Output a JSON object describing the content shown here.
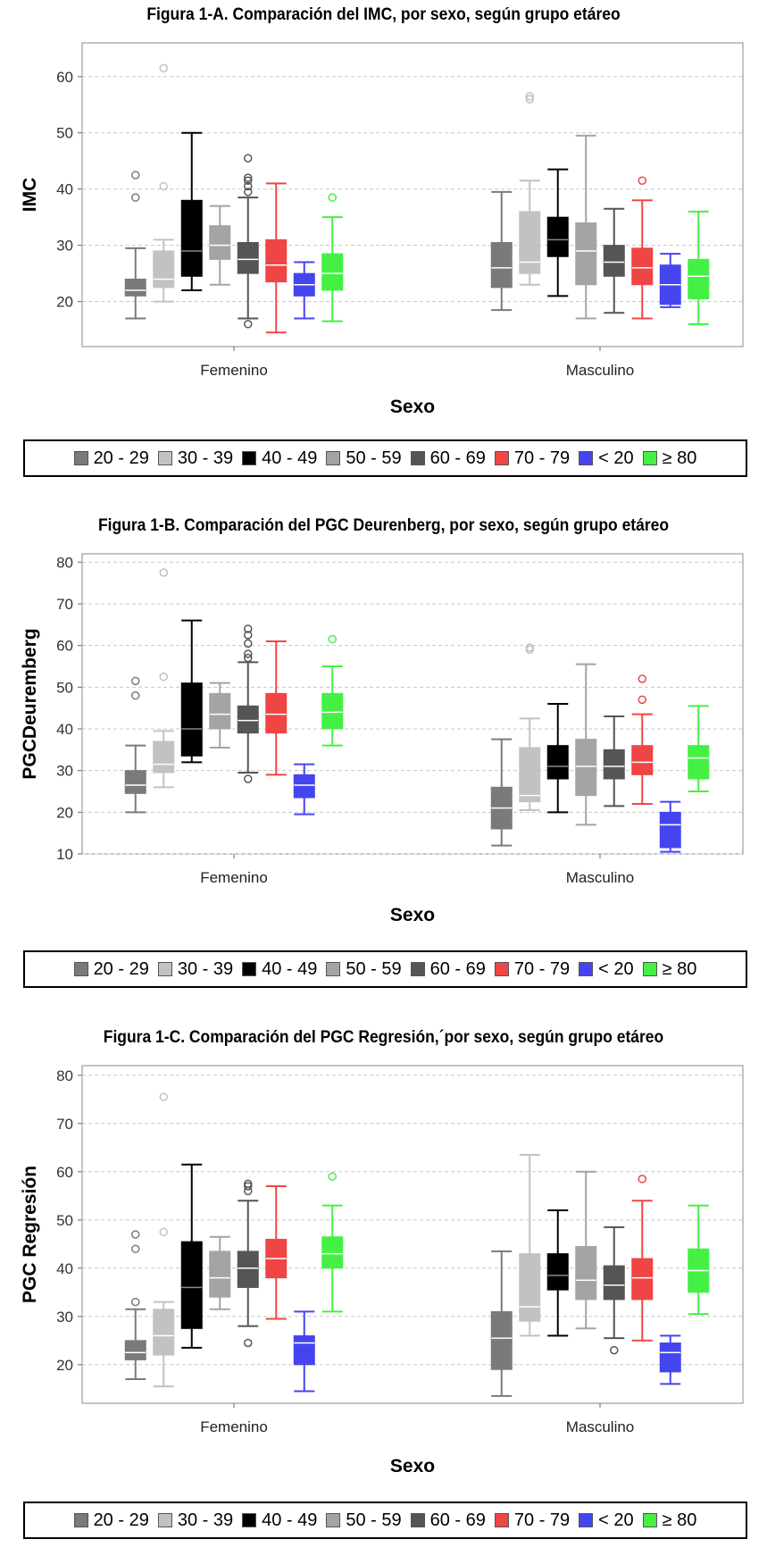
{
  "groups_order": [
    "20 - 29",
    "30 - 39",
    "40 - 49",
    "50 - 59",
    "60 - 69",
    "70 - 79",
    "< 20",
    "≥ 80"
  ],
  "colors": {
    "20 - 29": "#7a7a7a",
    "30 - 39": "#c2c2c2",
    "40 - 49": "#000000",
    "50 - 59": "#a4a4a4",
    "60 - 69": "#555555",
    "70 - 79": "#f04545",
    "< 20": "#4545f0",
    "≥ 80": "#45f045"
  },
  "legend": [
    {
      "label": "20 - 29",
      "color": "#7a7a7a"
    },
    {
      "label": "30 - 39",
      "color": "#c2c2c2"
    },
    {
      "label": "40 - 49",
      "color": "#000000"
    },
    {
      "label": "50 - 59",
      "color": "#a4a4a4"
    },
    {
      "label": "60 - 69",
      "color": "#555555"
    },
    {
      "label": "70 - 79",
      "color": "#f04545"
    },
    {
      "label": "< 20",
      "color": "#4545f0"
    },
    {
      "label": "≥ 80",
      "color": "#45f045"
    }
  ],
  "chart_data": [
    {
      "type": "boxplot",
      "title": "Figura 1-A. Comparación del IMC, por sexo, según grupo etáreo",
      "xlabel": "Sexo",
      "ylabel": "IMC",
      "ylim": [
        12,
        66
      ],
      "yticks": [
        20,
        30,
        40,
        50,
        60
      ],
      "grid": true,
      "legend_position": "bottom",
      "categories": [
        "Femenino",
        "Masculino"
      ],
      "series": [
        {
          "name": "20 - 29",
          "boxes": [
            {
              "min": 17,
              "q1": 21,
              "median": 22,
              "q3": 24,
              "max": 29.5,
              "outliers": [
                38.5,
                42.5
              ]
            },
            {
              "min": 18.5,
              "q1": 22.5,
              "median": 26,
              "q3": 30.5,
              "max": 39.5,
              "outliers": []
            }
          ]
        },
        {
          "name": "30 - 39",
          "boxes": [
            {
              "min": 20,
              "q1": 22.5,
              "median": 24,
              "q3": 29,
              "max": 31,
              "outliers": [
                40.5,
                61.5
              ]
            },
            {
              "min": 23,
              "q1": 25,
              "median": 27,
              "q3": 36,
              "max": 41.5,
              "outliers": [
                56,
                56.5
              ]
            }
          ]
        },
        {
          "name": "40 - 49",
          "boxes": [
            {
              "min": 22,
              "q1": 24.5,
              "median": 29,
              "q3": 38,
              "max": 50,
              "outliers": []
            },
            {
              "min": 21,
              "q1": 28,
              "median": 31,
              "q3": 35,
              "max": 43.5,
              "outliers": []
            }
          ]
        },
        {
          "name": "50 - 59",
          "boxes": [
            {
              "min": 23,
              "q1": 27.5,
              "median": 30,
              "q3": 33.5,
              "max": 37,
              "outliers": []
            },
            {
              "min": 17,
              "q1": 23,
              "median": 29,
              "q3": 34,
              "max": 49.5,
              "outliers": []
            }
          ]
        },
        {
          "name": "60 - 69",
          "boxes": [
            {
              "min": 17,
              "q1": 25,
              "median": 27.5,
              "q3": 30.5,
              "max": 38.5,
              "outliers": [
                16,
                39.5,
                40.5,
                41.5,
                42,
                45.5
              ]
            },
            {
              "min": 18,
              "q1": 24.5,
              "median": 27,
              "q3": 30,
              "max": 36.5,
              "outliers": []
            }
          ]
        },
        {
          "name": "70 - 79",
          "boxes": [
            {
              "min": 14.5,
              "q1": 23.5,
              "median": 26.5,
              "q3": 31,
              "max": 41,
              "outliers": []
            },
            {
              "min": 17,
              "q1": 23,
              "median": 26,
              "q3": 29.5,
              "max": 38,
              "outliers": [
                41.5
              ]
            }
          ]
        },
        {
          "name": "< 20",
          "boxes": [
            {
              "min": 17,
              "q1": 21,
              "median": 23,
              "q3": 25,
              "max": 27,
              "outliers": []
            },
            {
              "min": 19,
              "q1": 19.5,
              "median": 23,
              "q3": 26.5,
              "max": 28.5,
              "outliers": []
            }
          ]
        },
        {
          "name": "≥ 80",
          "boxes": [
            {
              "min": 16.5,
              "q1": 22,
              "median": 25,
              "q3": 28.5,
              "max": 35,
              "outliers": [
                38.5
              ]
            },
            {
              "min": 16,
              "q1": 20.5,
              "median": 24.5,
              "q3": 27.5,
              "max": 36,
              "outliers": []
            }
          ]
        }
      ]
    },
    {
      "type": "boxplot",
      "title": "Figura 1-B. Comparación del PGC Deurenberg, por sexo, según grupo etáreo",
      "xlabel": "Sexo",
      "ylabel": "PGCDeuremberg",
      "ylim": [
        10,
        82
      ],
      "yticks": [
        10,
        20,
        30,
        40,
        50,
        60,
        70,
        80
      ],
      "grid": true,
      "legend_position": "bottom",
      "categories": [
        "Femenino",
        "Masculino"
      ],
      "series": [
        {
          "name": "20 - 29",
          "boxes": [
            {
              "min": 20,
              "q1": 24.5,
              "median": 26.5,
              "q3": 30,
              "max": 36,
              "outliers": [
                48,
                51.5
              ]
            },
            {
              "min": 12,
              "q1": 16,
              "median": 21,
              "q3": 26,
              "max": 37.5,
              "outliers": []
            }
          ]
        },
        {
          "name": "30 - 39",
          "boxes": [
            {
              "min": 26,
              "q1": 29.5,
              "median": 31.5,
              "q3": 37,
              "max": 39.5,
              "outliers": [
                52.5,
                77.5
              ]
            },
            {
              "min": 20.5,
              "q1": 22.5,
              "median": 24,
              "q3": 35.5,
              "max": 42.5,
              "outliers": [
                59,
                59.5
              ]
            }
          ]
        },
        {
          "name": "40 - 49",
          "boxes": [
            {
              "min": 32,
              "q1": 33.5,
              "median": 40,
              "q3": 51,
              "max": 66,
              "outliers": []
            },
            {
              "min": 20,
              "q1": 28,
              "median": 31,
              "q3": 36,
              "max": 46,
              "outliers": []
            }
          ]
        },
        {
          "name": "50 - 59",
          "boxes": [
            {
              "min": 35.5,
              "q1": 40,
              "median": 43.5,
              "q3": 48.5,
              "max": 51,
              "outliers": []
            },
            {
              "min": 17,
              "q1": 24,
              "median": 31,
              "q3": 37.5,
              "max": 55.5,
              "outliers": []
            }
          ]
        },
        {
          "name": "60 - 69",
          "boxes": [
            {
              "min": 29.5,
              "q1": 39,
              "median": 42,
              "q3": 45.5,
              "max": 56,
              "outliers": [
                28,
                57,
                58,
                60.5,
                62.5,
                64
              ]
            },
            {
              "min": 21.5,
              "q1": 28,
              "median": 31,
              "q3": 35,
              "max": 43,
              "outliers": []
            }
          ]
        },
        {
          "name": "70 - 79",
          "boxes": [
            {
              "min": 29,
              "q1": 39,
              "median": 43.5,
              "q3": 48.5,
              "max": 61,
              "outliers": []
            },
            {
              "min": 22,
              "q1": 29,
              "median": 32,
              "q3": 36,
              "max": 43.5,
              "outliers": [
                47,
                52
              ]
            }
          ]
        },
        {
          "name": "< 20",
          "boxes": [
            {
              "min": 19.5,
              "q1": 23.5,
              "median": 26.5,
              "q3": 29,
              "max": 31.5,
              "outliers": []
            },
            {
              "min": 10.5,
              "q1": 11.5,
              "median": 17,
              "q3": 20,
              "max": 22.5,
              "outliers": []
            }
          ]
        },
        {
          "name": "≥ 80",
          "boxes": [
            {
              "min": 36,
              "q1": 40,
              "median": 44,
              "q3": 48.5,
              "max": 55,
              "outliers": [
                61.5
              ]
            },
            {
              "min": 25,
              "q1": 28,
              "median": 33,
              "q3": 36,
              "max": 45.5,
              "outliers": []
            }
          ]
        }
      ]
    },
    {
      "type": "boxplot",
      "title": "Figura 1-C. Comparación del PGC Regresión,´por sexo, según grupo etáreo",
      "xlabel": "Sexo",
      "ylabel": "PGC Regresión",
      "ylim": [
        12,
        82
      ],
      "yticks": [
        20,
        30,
        40,
        50,
        60,
        70,
        80
      ],
      "grid": true,
      "legend_position": "bottom",
      "categories": [
        "Femenino",
        "Masculino"
      ],
      "series": [
        {
          "name": "20 - 29",
          "boxes": [
            {
              "min": 17,
              "q1": 21,
              "median": 22.5,
              "q3": 25,
              "max": 31.5,
              "outliers": [
                33,
                44,
                47
              ]
            },
            {
              "min": 13.5,
              "q1": 19,
              "median": 25.5,
              "q3": 31,
              "max": 43.5,
              "outliers": []
            }
          ]
        },
        {
          "name": "30 - 39",
          "boxes": [
            {
              "min": 15.5,
              "q1": 22,
              "median": 26,
              "q3": 31.5,
              "max": 33,
              "outliers": [
                47.5,
                75.5
              ]
            },
            {
              "min": 26,
              "q1": 29,
              "median": 32,
              "q3": 43,
              "max": 63.5,
              "outliers": []
            }
          ]
        },
        {
          "name": "40 - 49",
          "boxes": [
            {
              "min": 23.5,
              "q1": 27.5,
              "median": 36,
              "q3": 45.5,
              "max": 61.5,
              "outliers": []
            },
            {
              "min": 26,
              "q1": 35.5,
              "median": 38.5,
              "q3": 43,
              "max": 52,
              "outliers": []
            }
          ]
        },
        {
          "name": "50 - 59",
          "boxes": [
            {
              "min": 31.5,
              "q1": 34,
              "median": 38,
              "q3": 43.5,
              "max": 46.5,
              "outliers": []
            },
            {
              "min": 27.5,
              "q1": 33.5,
              "median": 37.5,
              "q3": 44.5,
              "max": 60,
              "outliers": []
            }
          ]
        },
        {
          "name": "60 - 69",
          "boxes": [
            {
              "min": 28,
              "q1": 36,
              "median": 40,
              "q3": 43.5,
              "max": 54,
              "outliers": [
                24.5,
                56,
                57,
                57.5
              ]
            },
            {
              "min": 25.5,
              "q1": 33.5,
              "median": 36.5,
              "q3": 40.5,
              "max": 48.5,
              "outliers": [
                23
              ]
            }
          ]
        },
        {
          "name": "70 - 79",
          "boxes": [
            {
              "min": 29.5,
              "q1": 38,
              "median": 42,
              "q3": 46,
              "max": 57,
              "outliers": []
            },
            {
              "min": 25,
              "q1": 33.5,
              "median": 38,
              "q3": 42,
              "max": 54,
              "outliers": [
                58.5
              ]
            }
          ]
        },
        {
          "name": "< 20",
          "boxes": [
            {
              "min": 14.5,
              "q1": 20,
              "median": 24.5,
              "q3": 26,
              "max": 31,
              "outliers": []
            },
            {
              "min": 16,
              "q1": 18.5,
              "median": 22.5,
              "q3": 24.5,
              "max": 26,
              "outliers": []
            }
          ]
        },
        {
          "name": "≥ 80",
          "boxes": [
            {
              "min": 31,
              "q1": 40,
              "median": 43,
              "q3": 46.5,
              "max": 53,
              "outliers": [
                59
              ]
            },
            {
              "min": 30.5,
              "q1": 35,
              "median": 39.5,
              "q3": 44,
              "max": 53,
              "outliers": []
            }
          ]
        }
      ]
    }
  ]
}
